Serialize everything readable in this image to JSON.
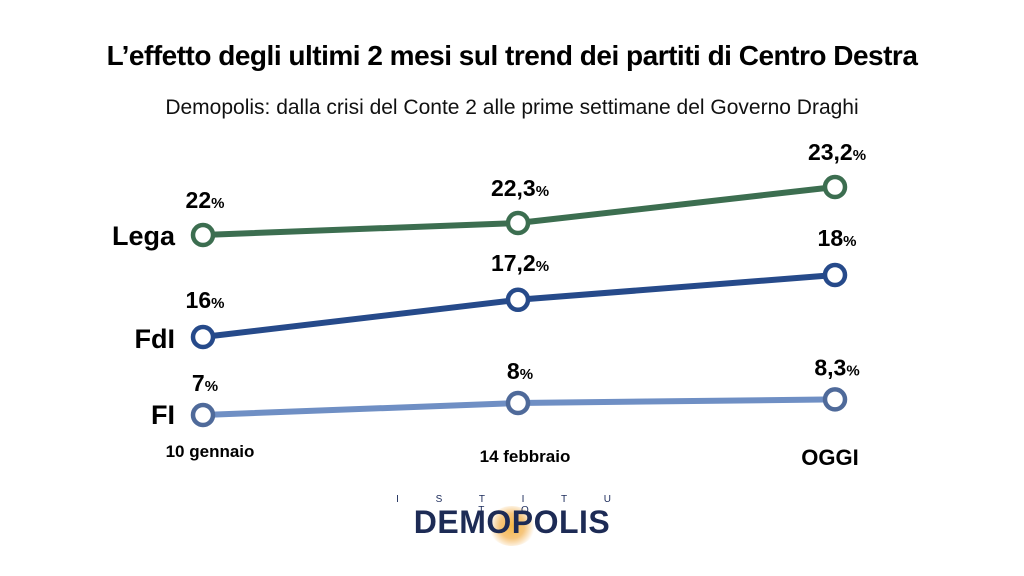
{
  "title": "L’effetto degli ultimi 2 mesi sul trend dei partiti di Centro Destra",
  "subtitle": "Demopolis: dalla crisi del Conte 2 alle prime settimane del Governo Draghi",
  "logo": {
    "top": "I S T I T U T O",
    "name": "DEMOPOLIS"
  },
  "chart_data": {
    "type": "line",
    "categories": [
      "10 gennaio",
      "14 febbraio",
      "OGGI"
    ],
    "unit": "%",
    "series": [
      {
        "name": "Lega",
        "values": [
          22,
          22.3,
          23.2
        ],
        "labels": [
          "22",
          "22,3",
          "23,2"
        ],
        "color": "#3c6e50"
      },
      {
        "name": "FdI",
        "values": [
          16,
          17.2,
          18
        ],
        "labels": [
          "16",
          "17,2",
          "18"
        ],
        "color": "#264a8a"
      },
      {
        "name": "FI",
        "values": [
          7,
          8,
          8.3
        ],
        "labels": [
          "7",
          "8",
          "8,3"
        ],
        "color": "#6f8fc4",
        "marker_color": "#4f6a9a"
      }
    ],
    "grid": false,
    "legend": "none"
  }
}
